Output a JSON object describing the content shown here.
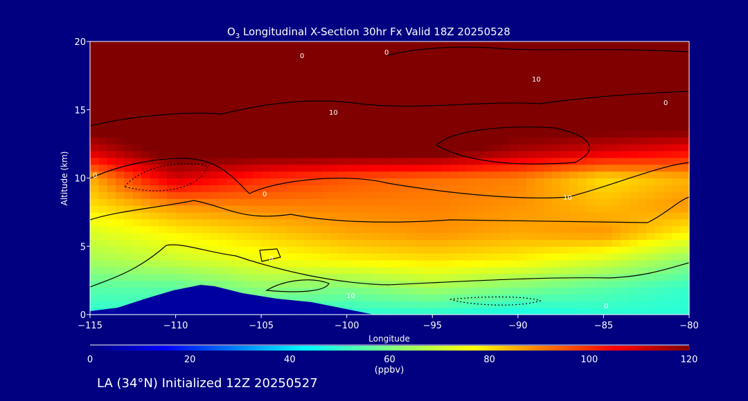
{
  "chart_data": {
    "type": "heatmap",
    "title_prefix": "O",
    "title_sub": "3",
    "title_rest": " Longitudinal X-Section 30hr  Fx Valid 18Z 20250528",
    "xlabel": "Longitude",
    "ylabel": "Altitude (km)",
    "xlim": [
      -115,
      -80
    ],
    "ylim": [
      0,
      20
    ],
    "xticks": [
      -115,
      -110,
      -105,
      -100,
      -95,
      -90,
      -85,
      -80
    ],
    "xtick_labels": [
      "−115",
      "−110",
      "−105",
      "−100",
      "−95",
      "−90",
      "−85",
      "−80"
    ],
    "yticks": [
      0,
      5,
      10,
      15,
      20
    ],
    "ytick_labels": [
      "0",
      "5",
      "10",
      "15",
      "20"
    ],
    "x": [
      -115,
      -110,
      -105,
      -100,
      -95,
      -90,
      -85,
      -80
    ],
    "y": [
      0,
      2,
      4,
      6,
      8,
      10,
      12,
      14,
      16,
      18,
      20
    ],
    "values": [
      [
        48,
        50,
        50,
        48,
        48,
        45,
        48,
        48
      ],
      [
        55,
        55,
        62,
        60,
        65,
        60,
        55,
        50
      ],
      [
        65,
        70,
        75,
        78,
        80,
        78,
        72,
        62
      ],
      [
        72,
        78,
        82,
        86,
        88,
        86,
        88,
        78
      ],
      [
        80,
        88,
        90,
        90,
        90,
        88,
        84,
        88
      ],
      [
        85,
        110,
        100,
        95,
        92,
        90,
        80,
        85
      ],
      [
        110,
        125,
        125,
        125,
        125,
        115,
        110,
        105
      ],
      [
        125,
        125,
        125,
        125,
        125,
        125,
        125,
        125
      ],
      [
        125,
        125,
        125,
        125,
        125,
        125,
        125,
        125
      ],
      [
        125,
        125,
        125,
        125,
        125,
        125,
        125,
        125
      ],
      [
        125,
        125,
        125,
        125,
        125,
        125,
        125,
        125
      ]
    ],
    "colorbar": {
      "range": [
        0,
        120
      ],
      "ticks": [
        "0",
        "20",
        "40",
        "60",
        "80",
        "100",
        "120"
      ],
      "units": "(ppbv)"
    },
    "contour_labels": [
      "0",
      "0",
      "10",
      "10",
      "0",
      "10",
      "0",
      "0",
      "10",
      "0",
      "0"
    ]
  },
  "footer": "LA (34°N) Initialized 12Z 20250527"
}
